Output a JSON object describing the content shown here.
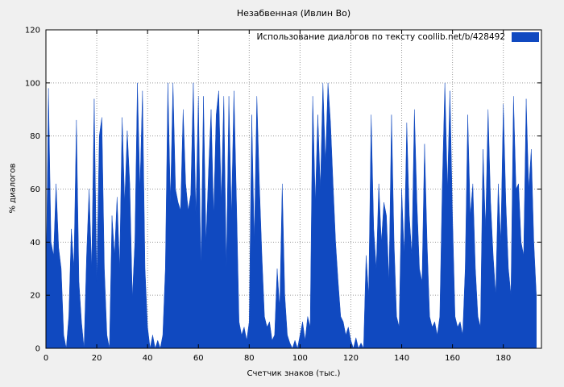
{
  "chart_data": {
    "type": "area",
    "title": "Незабвенная (Ивлин Во)",
    "xlabel": "Счетчик знаков (тыс.)",
    "ylabel": "% диалогов",
    "legend": "Использование диалогов по тексту  coollib.net/b/428492",
    "xlim": [
      0,
      195
    ],
    "ylim": [
      0,
      120
    ],
    "xticks": [
      0,
      20,
      40,
      60,
      80,
      100,
      120,
      140,
      160,
      180
    ],
    "yticks": [
      0,
      20,
      40,
      60,
      80,
      100,
      120
    ],
    "grid": true,
    "legend_position": "top-right",
    "colors": {
      "series_fill": "#1049c0",
      "plot_background": "#ffffff",
      "page_background": "#f0f0f0",
      "grid_line": "#9a9a9a",
      "frame": "#000000"
    },
    "series": [
      {
        "name": "Использование диалогов по тексту",
        "color": "#1049c0",
        "x_start": 0,
        "x_step": 1,
        "values": [
          20,
          98,
          40,
          35,
          62,
          38,
          30,
          5,
          0,
          12,
          45,
          30,
          86,
          25,
          10,
          0,
          35,
          60,
          30,
          94,
          25,
          80,
          87,
          30,
          5,
          0,
          50,
          35,
          57,
          30,
          87,
          55,
          82,
          62,
          19,
          40,
          100,
          60,
          97,
          30,
          8,
          0,
          5,
          0,
          3,
          0,
          5,
          30,
          100,
          55,
          100,
          60,
          55,
          52,
          90,
          62,
          52,
          58,
          100,
          50,
          95,
          30,
          95,
          40,
          67,
          90,
          50,
          88,
          97,
          55,
          95,
          30,
          95,
          50,
          97,
          55,
          10,
          5,
          8,
          3,
          10,
          88,
          40,
          95,
          62,
          35,
          12,
          8,
          10,
          3,
          5,
          30,
          15,
          62,
          20,
          5,
          2,
          0,
          3,
          0,
          5,
          10,
          3,
          12,
          8,
          95,
          55,
          88,
          60,
          100,
          70,
          100,
          85,
          62,
          40,
          25,
          12,
          10,
          5,
          8,
          3,
          0,
          4,
          0,
          2,
          0,
          35,
          20,
          88,
          45,
          30,
          62,
          40,
          55,
          50,
          25,
          88,
          40,
          12,
          8,
          60,
          35,
          85,
          50,
          35,
          90,
          55,
          30,
          25,
          77,
          40,
          12,
          8,
          10,
          5,
          12,
          62,
          100,
          60,
          97,
          50,
          12,
          8,
          10,
          5,
          30,
          88,
          50,
          62,
          30,
          12,
          8,
          75,
          45,
          90,
          55,
          35,
          20,
          62,
          40,
          92,
          55,
          30,
          20,
          95,
          60,
          62,
          40,
          35,
          94,
          60,
          75,
          40,
          20
        ]
      }
    ]
  }
}
